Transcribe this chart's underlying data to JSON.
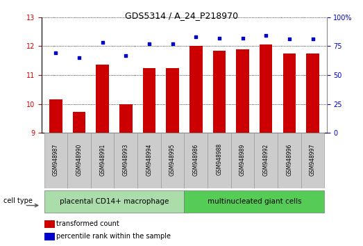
{
  "title": "GDS5314 / A_24_P218970",
  "samples": [
    "GSM948987",
    "GSM948990",
    "GSM948991",
    "GSM948993",
    "GSM948994",
    "GSM948995",
    "GSM948986",
    "GSM948988",
    "GSM948989",
    "GSM948992",
    "GSM948996",
    "GSM948997"
  ],
  "bar_values": [
    10.15,
    9.73,
    11.35,
    10.0,
    11.25,
    11.25,
    12.0,
    11.85,
    11.9,
    12.05,
    11.75,
    11.75
  ],
  "percentile_values": [
    69,
    65,
    78,
    67,
    77,
    77,
    83,
    82,
    82,
    84,
    81,
    81
  ],
  "bar_color": "#cc0000",
  "percentile_color": "#0000cc",
  "ylim_left": [
    9,
    13
  ],
  "ylim_right": [
    0,
    100
  ],
  "yticks_left": [
    9,
    10,
    11,
    12,
    13
  ],
  "yticks_right": [
    0,
    25,
    50,
    75,
    100
  ],
  "ytick_labels_right": [
    "0",
    "25",
    "50",
    "75",
    "100%"
  ],
  "group1_label": "placental CD14+ macrophage",
  "group2_label": "multinucleated giant cells",
  "group1_count": 6,
  "group2_count": 6,
  "cell_type_label": "cell type",
  "legend_bar_label": "transformed count",
  "legend_dot_label": "percentile rank within the sample",
  "title_fontsize": 9,
  "tick_fontsize": 7,
  "label_fontsize": 7,
  "sample_fontsize": 5.5,
  "group_fontsize": 7.5,
  "background_color": "#ffffff",
  "plot_bg": "#ffffff",
  "bar_bottom": 9.0,
  "group1_color": "#aaddaa",
  "group2_color": "#55cc55",
  "sample_bg_color": "#cccccc",
  "sample_border_color": "#999999"
}
